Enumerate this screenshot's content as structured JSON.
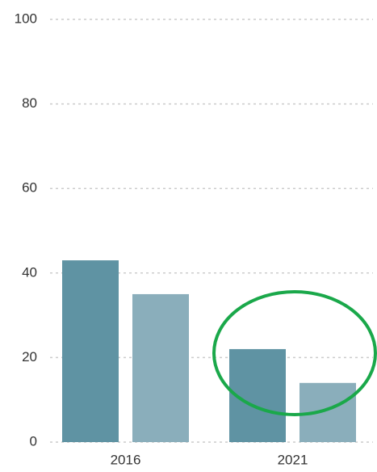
{
  "chart_data": {
    "type": "bar",
    "categories": [
      "2016",
      "2021"
    ],
    "series": [
      {
        "color": "#5f93a3",
        "values": [
          43,
          22
        ]
      },
      {
        "color": "#8aaebb",
        "values": [
          35,
          14
        ]
      }
    ],
    "ylim": [
      0,
      100
    ],
    "yticks": [
      0,
      20,
      40,
      60,
      80,
      100
    ],
    "grid": true
  }
}
